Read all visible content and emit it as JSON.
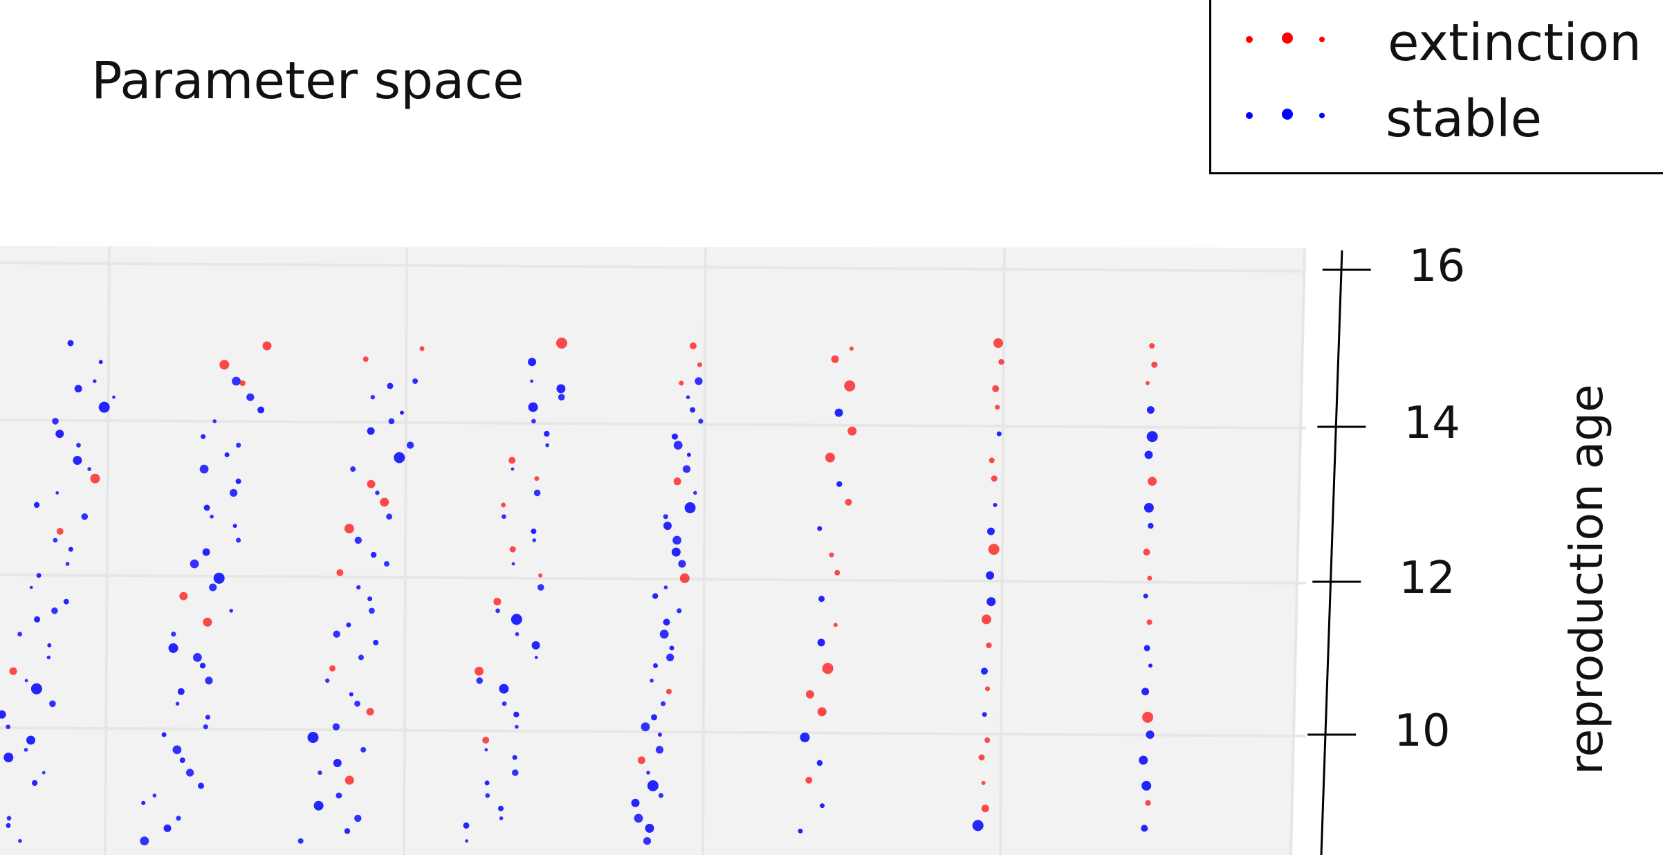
{
  "chart_data": {
    "type": "scatter",
    "title": "Parameter space",
    "zlabel": "reproduction age",
    "z_ticks": [
      16,
      14,
      12,
      10
    ],
    "zlim": [
      8.5,
      16
    ],
    "grid": true,
    "legend": {
      "placement": "top-right",
      "entries": [
        {
          "name": "extinction",
          "color": "#ff0000"
        },
        {
          "name": "stable",
          "color": "#0000ff"
        }
      ]
    },
    "colors": {
      "extinction": "#ff0000",
      "stable": "#0000ff",
      "pane": "#f2f2f2",
      "grid": "#e6e6e6"
    },
    "columns": [
      {
        "reproduction_age": [
          15.0,
          14.8,
          14.5,
          14.2,
          13.9,
          13.6,
          13.3,
          13.0,
          12.7,
          12.4,
          12.1,
          11.8,
          11.5,
          11.2,
          10.9,
          10.6,
          10.3,
          10.0,
          9.7,
          9.4,
          9.1,
          8.8
        ],
        "status": [
          "stable",
          "stable",
          "stable",
          "stable",
          "stable",
          "stable",
          "extinction",
          "stable",
          "extinction",
          "stable",
          "stable",
          "stable",
          "stable",
          "stable",
          "extinction",
          "stable",
          "stable",
          "stable",
          "stable",
          "stable",
          "stable",
          "stable"
        ]
      },
      {
        "reproduction_age": [
          15.0,
          14.8,
          14.5,
          14.2,
          13.9,
          13.6,
          13.3,
          13.0,
          12.7,
          12.4,
          12.1,
          11.8,
          11.5,
          11.2,
          10.9,
          10.6,
          10.3,
          10.0,
          9.7,
          9.4,
          9.1,
          8.8
        ],
        "status": [
          "extinction",
          "extinction",
          "extinction",
          "stable",
          "stable",
          "stable",
          "stable",
          "stable",
          "stable",
          "stable",
          "stable",
          "extinction",
          "extinction",
          "stable",
          "stable",
          "stable",
          "stable",
          "stable",
          "stable",
          "stable",
          "stable",
          "stable"
        ]
      },
      {
        "reproduction_age": [
          15.0,
          14.8,
          14.5,
          14.2,
          13.9,
          13.6,
          13.3,
          13.0,
          12.7,
          12.4,
          12.1,
          11.8,
          11.5,
          11.2,
          10.9,
          10.6,
          10.3,
          10.0,
          9.7,
          9.4,
          9.1,
          8.8
        ],
        "status": [
          "extinction",
          "extinction",
          "stable",
          "stable",
          "stable",
          "stable",
          "extinction",
          "extinction",
          "extinction",
          "stable",
          "extinction",
          "stable",
          "stable",
          "stable",
          "extinction",
          "stable",
          "extinction",
          "stable",
          "stable",
          "extinction",
          "stable",
          "stable"
        ]
      },
      {
        "reproduction_age": [
          15.0,
          14.8,
          14.5,
          14.2,
          13.9,
          13.6,
          13.3,
          13.0,
          12.7,
          12.4,
          12.1,
          11.8,
          11.5,
          11.2,
          10.9,
          10.6,
          10.3,
          10.0,
          9.7,
          9.4,
          9.1,
          8.8
        ],
        "status": [
          "extinction",
          "stable",
          "stable",
          "stable",
          "stable",
          "extinction",
          "extinction",
          "extinction",
          "stable",
          "extinction",
          "extinction",
          "extinction",
          "stable",
          "stable",
          "extinction",
          "stable",
          "stable",
          "extinction",
          "stable",
          "stable",
          "stable",
          "stable"
        ]
      },
      {
        "reproduction_age": [
          15.0,
          14.8,
          14.5,
          14.2,
          13.9,
          13.6,
          13.3,
          13.0,
          12.7,
          12.4,
          12.1,
          11.8,
          11.5,
          11.2,
          10.9,
          10.6,
          10.3,
          10.0,
          9.7,
          9.4,
          9.1,
          8.8
        ],
        "status": [
          "extinction",
          "extinction",
          "extinction",
          "stable",
          "stable",
          "stable",
          "extinction",
          "stable",
          "stable",
          "stable",
          "extinction",
          "stable",
          "stable",
          "stable",
          "stable",
          "extinction",
          "stable",
          "stable",
          "extinction",
          "stable",
          "stable",
          "stable"
        ]
      },
      {
        "reproduction_age": [
          15.0,
          14.8,
          14.5,
          14.2,
          13.9,
          13.6,
          13.3,
          13.0,
          12.7,
          12.4,
          12.1,
          11.8,
          11.5,
          11.2,
          10.9,
          10.6,
          10.3,
          10.0,
          9.7,
          9.4,
          9.1,
          8.8
        ],
        "status": [
          "extinction",
          "extinction",
          "extinction",
          "stable",
          "extinction",
          "extinction",
          "stable",
          "extinction",
          "stable",
          "extinction",
          "extinction",
          "stable",
          "extinction",
          "stable",
          "extinction",
          "extinction",
          "extinction",
          "stable",
          "stable",
          "extinction",
          "stable",
          "stable"
        ]
      },
      {
        "reproduction_age": [
          15.0,
          14.8,
          14.5,
          14.2,
          13.9,
          13.6,
          13.3,
          13.0,
          12.7,
          12.4,
          12.1,
          11.8,
          11.5,
          11.2,
          10.9,
          10.6,
          10.3,
          10.0,
          9.7,
          9.4,
          9.1,
          8.8
        ],
        "status": [
          "extinction",
          "extinction",
          "extinction",
          "extinction",
          "stable",
          "extinction",
          "extinction",
          "stable",
          "stable",
          "extinction",
          "stable",
          "stable",
          "extinction",
          "extinction",
          "stable",
          "extinction",
          "stable",
          "extinction",
          "extinction",
          "extinction",
          "extinction",
          "stable"
        ]
      },
      {
        "reproduction_age": [
          15.0,
          14.8,
          14.5,
          14.2,
          13.9,
          13.6,
          13.3,
          13.0,
          12.7,
          12.4,
          12.1,
          11.8,
          11.5,
          11.2,
          10.9,
          10.6,
          10.3,
          10.0,
          9.7,
          9.4,
          9.1,
          8.8
        ],
        "status": [
          "extinction",
          "extinction",
          "extinction",
          "stable",
          "stable",
          "stable",
          "extinction",
          "stable",
          "stable",
          "extinction",
          "extinction",
          "stable",
          "extinction",
          "stable",
          "stable",
          "stable",
          "extinction",
          "stable",
          "stable",
          "stable",
          "extinction",
          "stable"
        ]
      }
    ]
  }
}
